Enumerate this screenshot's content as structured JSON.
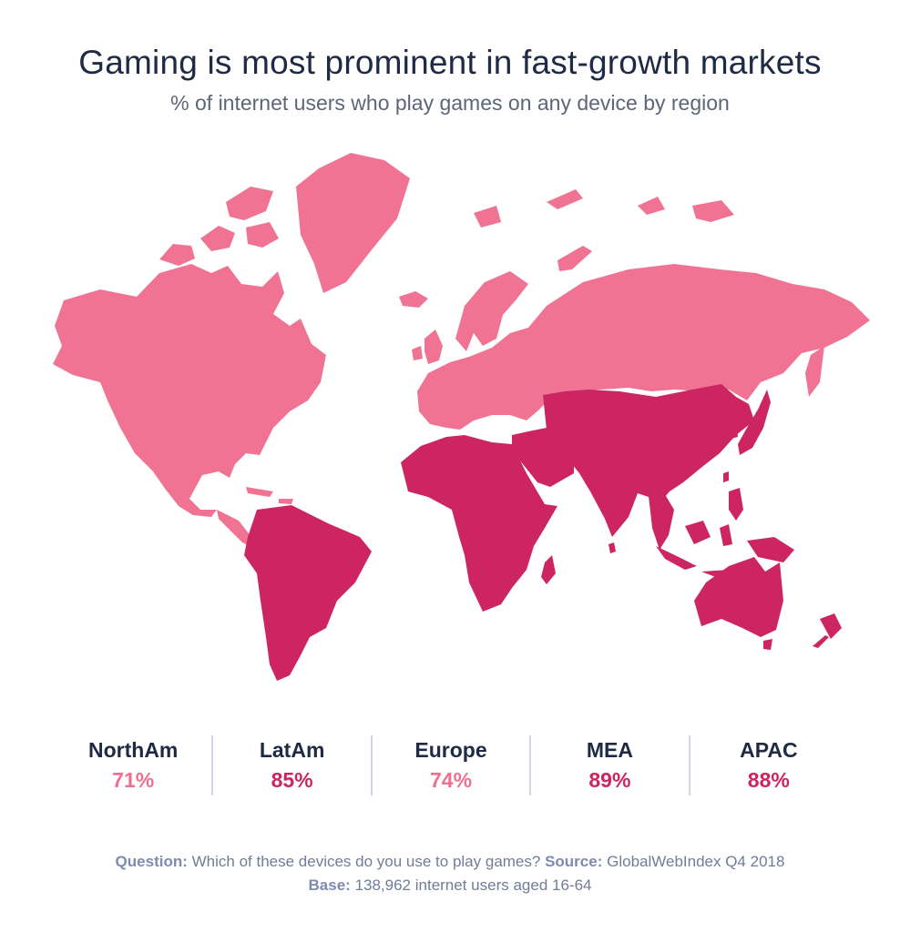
{
  "title": "Gaming is most prominent in fast-growth markets",
  "subtitle": "% of internet users who play games on any device by region",
  "colors": {
    "light": "#f07394",
    "dark": "#cc2561",
    "light_text": "#ef6f90",
    "dark_text": "#cc2561"
  },
  "regions": [
    {
      "name": "NorthAm",
      "value": "71%",
      "shade": "light"
    },
    {
      "name": "LatAm",
      "value": "85%",
      "shade": "dark"
    },
    {
      "name": "Europe",
      "value": "74%",
      "shade": "light"
    },
    {
      "name": "MEA",
      "value": "89%",
      "shade": "dark"
    },
    {
      "name": "APAC",
      "value": "88%",
      "shade": "dark"
    }
  ],
  "footer": {
    "question_label": "Question:",
    "question_text": "Which of these devices do you use to play games?",
    "source_label": "Source:",
    "source_text": "GlobalWebIndex Q4 2018",
    "base_label": "Base:",
    "base_text": "138,962 internet users aged 16-64"
  }
}
